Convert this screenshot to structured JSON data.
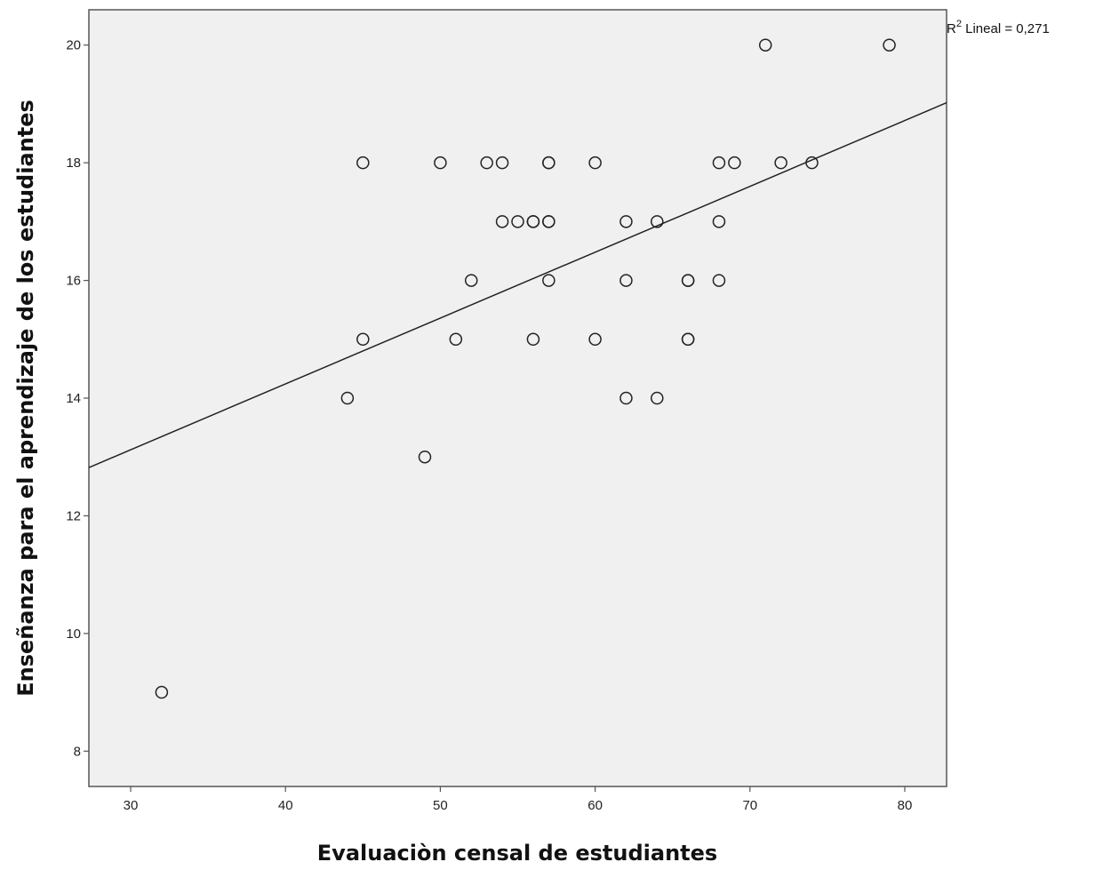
{
  "chart_data": {
    "type": "scatter",
    "xlabel": "Evaluaciòn censal de estudiantes",
    "ylabel": "Enseñanza para el aprendizaje de los estudiantes",
    "xlim": [
      27.3,
      82.7
    ],
    "ylim": [
      7.4,
      20.6
    ],
    "x_ticks": [
      30,
      40,
      50,
      60,
      70,
      80
    ],
    "y_ticks": [
      8,
      10,
      12,
      14,
      16,
      18,
      20
    ],
    "grid": false,
    "marker": "open-circle",
    "background_color": "#f0f0f0",
    "points": [
      {
        "x": 32,
        "y": 9
      },
      {
        "x": 44,
        "y": 14
      },
      {
        "x": 45,
        "y": 15
      },
      {
        "x": 45,
        "y": 18
      },
      {
        "x": 49,
        "y": 13
      },
      {
        "x": 50,
        "y": 18
      },
      {
        "x": 51,
        "y": 15
      },
      {
        "x": 52,
        "y": 16
      },
      {
        "x": 53,
        "y": 18
      },
      {
        "x": 54,
        "y": 18
      },
      {
        "x": 54,
        "y": 17
      },
      {
        "x": 55,
        "y": 17
      },
      {
        "x": 56,
        "y": 17
      },
      {
        "x": 56,
        "y": 17
      },
      {
        "x": 56,
        "y": 15
      },
      {
        "x": 57,
        "y": 18
      },
      {
        "x": 57,
        "y": 18
      },
      {
        "x": 57,
        "y": 17
      },
      {
        "x": 57,
        "y": 17
      },
      {
        "x": 57,
        "y": 16
      },
      {
        "x": 60,
        "y": 18
      },
      {
        "x": 60,
        "y": 15
      },
      {
        "x": 62,
        "y": 17
      },
      {
        "x": 62,
        "y": 16
      },
      {
        "x": 62,
        "y": 14
      },
      {
        "x": 64,
        "y": 17
      },
      {
        "x": 64,
        "y": 14
      },
      {
        "x": 66,
        "y": 16
      },
      {
        "x": 66,
        "y": 16
      },
      {
        "x": 66,
        "y": 15
      },
      {
        "x": 66,
        "y": 15
      },
      {
        "x": 68,
        "y": 18
      },
      {
        "x": 68,
        "y": 17
      },
      {
        "x": 68,
        "y": 16
      },
      {
        "x": 69,
        "y": 18
      },
      {
        "x": 71,
        "y": 20
      },
      {
        "x": 72,
        "y": 18
      },
      {
        "x": 74,
        "y": 18
      },
      {
        "x": 79,
        "y": 20
      }
    ],
    "fit_line": {
      "type": "linear",
      "x1": 27.3,
      "y1": 12.82,
      "x2": 82.7,
      "y2": 19.02,
      "r2_prefix": "R",
      "r2_superscript": "2",
      "r2_label": " Lineal = 0,271"
    }
  }
}
